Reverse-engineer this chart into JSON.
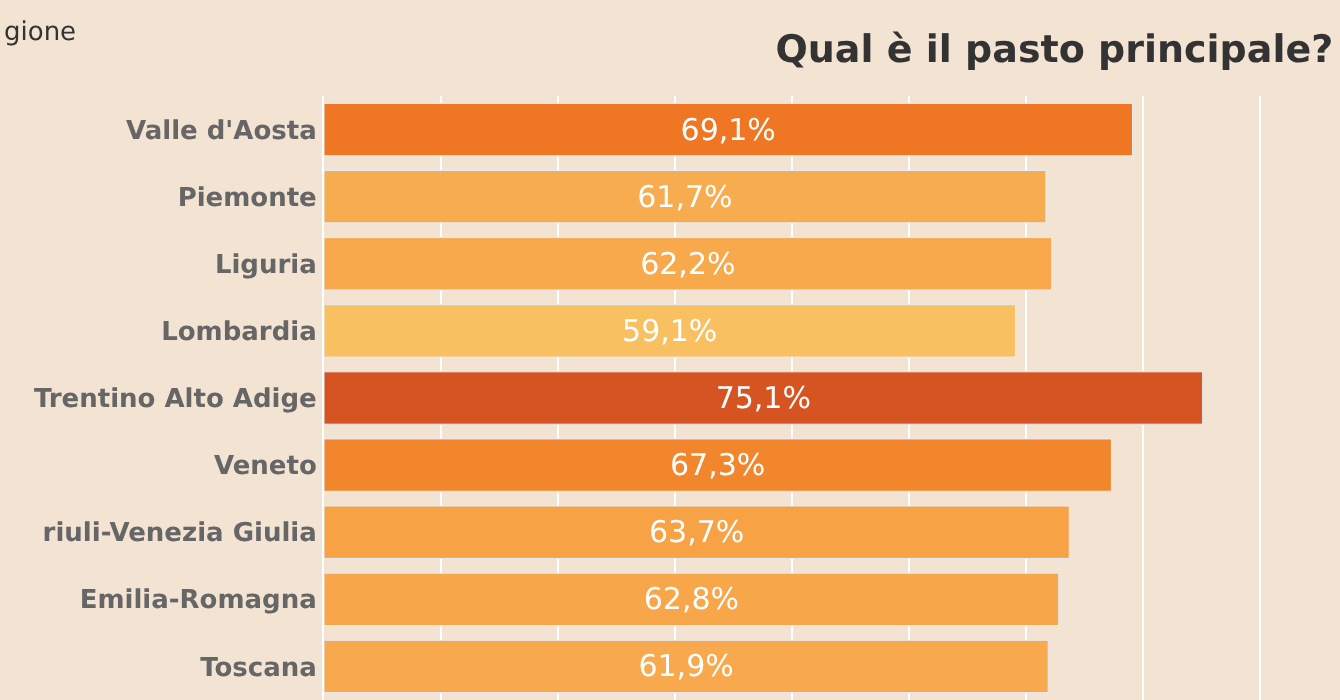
{
  "chart_data": {
    "type": "bar",
    "orientation": "horizontal",
    "title": "Qual è il pasto principale?",
    "ylabel": "gione",
    "categories": [
      "Valle d'Aosta",
      "Piemonte",
      "Liguria",
      "Lombardia",
      "Trentino Alto Adige",
      "Veneto",
      "riuli-Venezia Giulia",
      "Emilia-Romagna",
      "Toscana"
    ],
    "values": [
      69.1,
      61.7,
      62.2,
      59.1,
      75.1,
      67.3,
      63.7,
      62.8,
      61.9
    ],
    "value_labels": [
      "69,1%",
      "61,7%",
      "62,2%",
      "59,1%",
      "75,1%",
      "67,3%",
      "63,7%",
      "62,8%",
      "61,9%"
    ],
    "colors": [
      "#ef7622",
      "#f7ac4f",
      "#f7a94c",
      "#f8c060",
      "#d65421",
      "#f2862c",
      "#f7a245",
      "#f7a64a",
      "#f8a94d"
    ],
    "xlim": [
      0,
      86.5
    ],
    "xticks": [
      {
        "value": 10,
        "label": null
      },
      {
        "value": 20,
        "label": null
      },
      {
        "value": 30,
        "label": null
      },
      {
        "value": 40,
        "label": null
      },
      {
        "value": 50,
        "label": null
      },
      {
        "value": 60,
        "label": null
      },
      {
        "value": 70,
        "label": null
      },
      {
        "value": 80,
        "label": null
      }
    ],
    "tick_labels": "y",
    "grid": "x",
    "legend": false
  }
}
